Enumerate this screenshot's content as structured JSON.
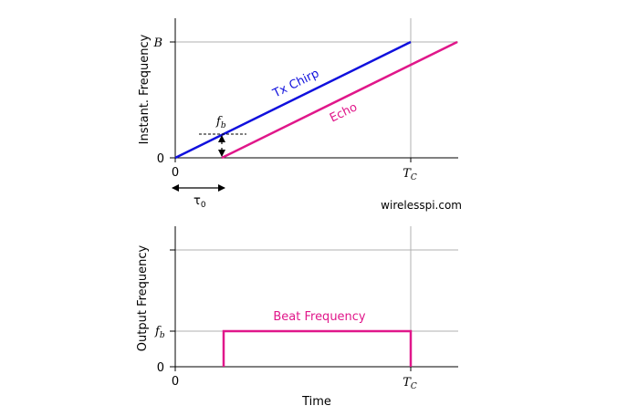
{
  "top": {
    "ylabel": "Instant. Frequency",
    "ytick_B": "B",
    "ytick_0": "0",
    "xtick_0": "0",
    "xtick_T": "T",
    "xtick_T_sub": "C",
    "tx_label": "Tx Chirp",
    "echo_label": "Echo",
    "fb_label": "f",
    "fb_sub": "b",
    "tau_label": "τ",
    "tau_sub": "0",
    "watermark": "wirelesspi.com"
  },
  "bottom": {
    "ylabel": "Output Frequency",
    "ytick_fb": "f",
    "ytick_fb_sub": "b",
    "ytick_0": "0",
    "xtick_0": "0",
    "xtick_T": "T",
    "xtick_T_sub": "C",
    "xlabel": "Time",
    "beat_label": "Beat Frequency"
  },
  "colors": {
    "tx": "#1010dd",
    "echo": "#e0178a",
    "grid": "#b0b0b0",
    "axis": "#000000"
  },
  "chart_data": [
    {
      "type": "line",
      "series": [
        {
          "name": "Tx Chirp",
          "x": [
            0,
            1
          ],
          "y": [
            0,
            1
          ]
        },
        {
          "name": "Echo",
          "x": [
            0.2,
            1.2
          ],
          "y": [
            0,
            1
          ]
        }
      ],
      "tau0": 0.2,
      "fb": 0.2,
      "xlim": [
        0,
        1.2
      ],
      "ylim": [
        0,
        1
      ]
    },
    {
      "type": "line",
      "series": [
        {
          "name": "Beat Frequency",
          "x": [
            0.2,
            0.2,
            1.0,
            1.0
          ],
          "y": [
            0,
            0.2,
            0.2,
            0
          ]
        }
      ],
      "xlim": [
        0,
        1.2
      ],
      "ylim": [
        0,
        0.5
      ]
    }
  ]
}
